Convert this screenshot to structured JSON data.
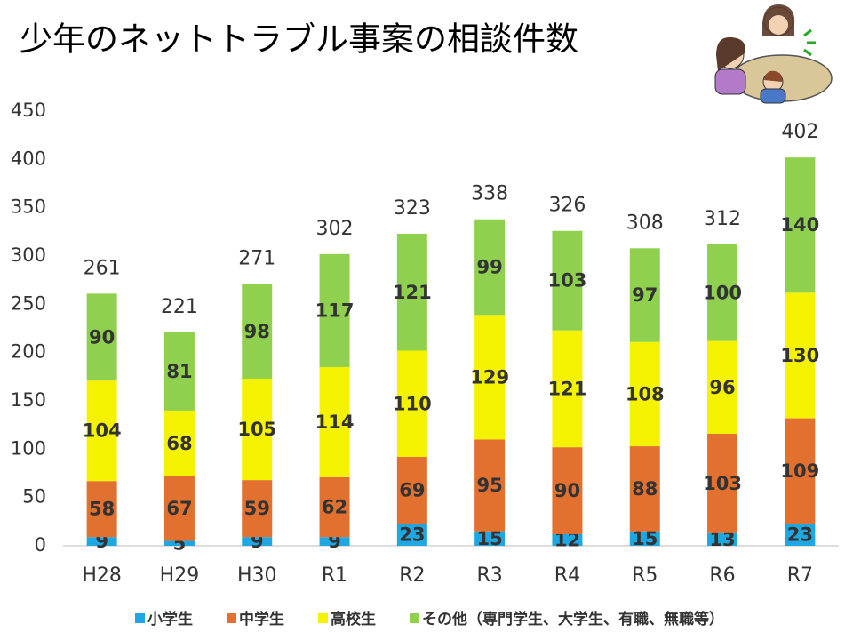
{
  "chart_data": {
    "type": "stacked-bar",
    "title": "少年のネットトラブル事案の相談件数",
    "categories": [
      "H28",
      "H29",
      "H30",
      "R1",
      "R2",
      "R3",
      "R4",
      "R5",
      "R6",
      "R7"
    ],
    "series": [
      {
        "name": "小学生",
        "color": "#1ea7e1",
        "values": [
          9,
          5,
          9,
          9,
          23,
          15,
          12,
          15,
          13,
          23
        ]
      },
      {
        "name": "中学生",
        "color": "#e2702f",
        "values": [
          58,
          67,
          59,
          62,
          69,
          95,
          90,
          88,
          103,
          109
        ]
      },
      {
        "name": "高校生",
        "color": "#f5f200",
        "values": [
          104,
          68,
          105,
          114,
          110,
          129,
          121,
          108,
          96,
          130
        ]
      },
      {
        "name": "その他（専門学生、大学生、有職、無職等）",
        "color": "#8fd14f",
        "values": [
          90,
          81,
          98,
          117,
          121,
          99,
          103,
          97,
          100,
          140
        ]
      }
    ],
    "totals": [
      261,
      221,
      271,
      302,
      323,
      338,
      326,
      308,
      312,
      402
    ],
    "ylim": [
      0,
      450
    ],
    "yticks": [
      0,
      50,
      100,
      150,
      200,
      250,
      300,
      350,
      400,
      450
    ],
    "grid": false,
    "legend": "bottom"
  }
}
